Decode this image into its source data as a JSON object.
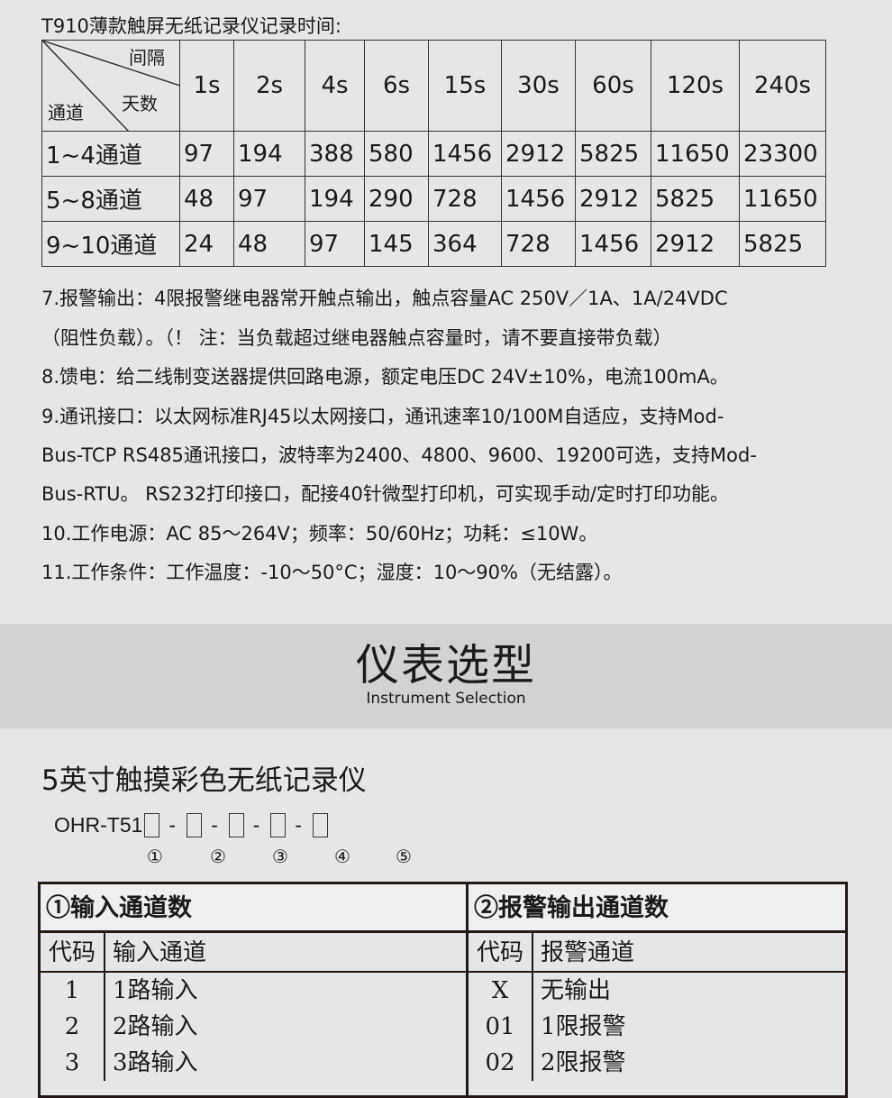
{
  "record_table": {
    "title": "T910薄款触屏无纸记录仪记录时间:",
    "corner": {
      "interval": "间隔",
      "days": "天数",
      "channel": "通道"
    },
    "intervals": [
      "1s",
      "2s",
      "4s",
      "6s",
      "15s",
      "30s",
      "60s",
      "120s",
      "240s"
    ],
    "rows": [
      {
        "label": "1~4通道",
        "values": [
          "97",
          "194",
          "388",
          "580",
          "1456",
          "2912",
          "5825",
          "11650",
          "23300"
        ]
      },
      {
        "label": "5~8通道",
        "values": [
          "48",
          "97",
          "194",
          "290",
          "728",
          "1456",
          "2912",
          "5825",
          "11650"
        ]
      },
      {
        "label": "9~10通道",
        "values": [
          "24",
          "48",
          "97",
          "145",
          "364",
          "728",
          "1456",
          "2912",
          "5825"
        ]
      }
    ]
  },
  "paragraphs": [
    "7.报警输出：4限报警继电器常开触点输出，触点容量AC 250V／1A、1A/24VDC",
    "（阻性负载）。（！ 注：当负载超过继电器触点容量时，请不要直接带负载）",
    "8.馈电：给二线制变送器提供回路电源，额定电压DC 24V±10%，电流100mA。",
    "9.通讯接口：以太网标准RJ45以太网接口，通讯速率10/100M自适应，支持Mod-",
    "Bus-TCP RS485通讯接口，波特率为2400、4800、9600、19200可选，支持Mod-",
    "Bus-RTU。 RS232打印接口，配接40针微型打印机，可实现手动/定时打印功能。",
    "10.工作电源：AC 85～264V；频率：50/60Hz；功耗：≤10W。",
    "11.工作条件：工作温度：-10～50°C；湿度：10～90%（无结露）。"
  ],
  "section": {
    "title_cn": "仪表选型",
    "title_en": "Instrument Selection"
  },
  "product": {
    "title": "5英寸触摸彩色无纸记录仪",
    "model_prefix": "OHR-T51",
    "dash": "-",
    "markers": [
      "①",
      "②",
      "③",
      "④",
      "⑤"
    ]
  },
  "selection": [
    {
      "header": "①输入通道数",
      "col_code": "代码",
      "col_desc": "输入通道",
      "rows": [
        [
          "1",
          "1路输入"
        ],
        [
          "2",
          "2路输入"
        ],
        [
          "3",
          "3路输入"
        ]
      ]
    },
    {
      "header": "②报警输出通道数",
      "col_code": "代码",
      "col_desc": "报警通道",
      "rows": [
        [
          "X",
          "无输出"
        ],
        [
          "01",
          "1限报警"
        ],
        [
          "02",
          "2限报警"
        ]
      ]
    }
  ]
}
